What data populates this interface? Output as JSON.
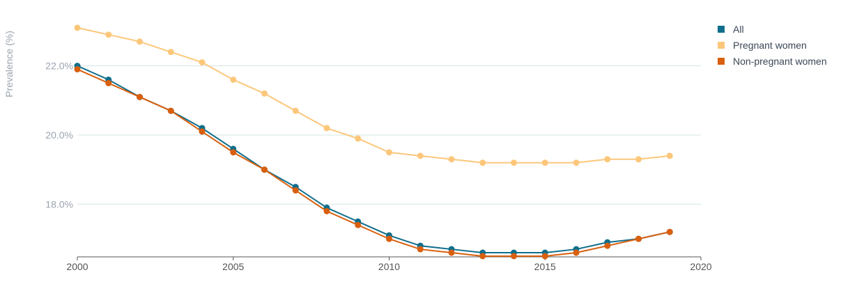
{
  "chart_data": {
    "type": "line",
    "title": "",
    "xlabel": "",
    "ylabel": "Prevalence (%)",
    "xlim": [
      2000,
      2020
    ],
    "ylim": [
      16.5,
      23.5
    ],
    "xticks": [
      2000,
      2005,
      2010,
      2015,
      2020
    ],
    "yticks": [
      18,
      20,
      22
    ],
    "ytick_format": "%",
    "grid": "horizontal",
    "legend_position": "top-right",
    "x": [
      2000,
      2001,
      2002,
      2003,
      2004,
      2005,
      2006,
      2007,
      2008,
      2009,
      2010,
      2011,
      2012,
      2013,
      2014,
      2015,
      2016,
      2017,
      2018,
      2019
    ],
    "series": [
      {
        "name": "All",
        "color": "#0f6e8c",
        "values": [
          22.0,
          21.6,
          21.1,
          20.7,
          20.2,
          19.6,
          19.0,
          18.5,
          17.9,
          17.5,
          17.1,
          16.8,
          16.7,
          16.6,
          16.6,
          16.6,
          16.7,
          16.9,
          17.0,
          17.2
        ]
      },
      {
        "name": "Pregnant women",
        "color": "#fcc77b",
        "values": [
          23.1,
          22.9,
          22.7,
          22.4,
          22.1,
          21.6,
          21.2,
          20.7,
          20.2,
          19.9,
          19.5,
          19.4,
          19.3,
          19.2,
          19.2,
          19.2,
          19.2,
          19.3,
          19.3,
          19.4
        ]
      },
      {
        "name": "Non-pregnant women",
        "color": "#d95f0e",
        "values": [
          21.9,
          21.5,
          21.1,
          20.7,
          20.1,
          19.5,
          19.0,
          18.4,
          17.8,
          17.4,
          17.0,
          16.7,
          16.6,
          16.5,
          16.5,
          16.5,
          16.6,
          16.8,
          17.0,
          17.2
        ]
      }
    ]
  },
  "colors": {
    "grid": "#d5e6e6",
    "axis": "#555555",
    "tick_text": "#555555",
    "ytick_text": "#9aa4b0",
    "legend_text": "#3a4656"
  }
}
